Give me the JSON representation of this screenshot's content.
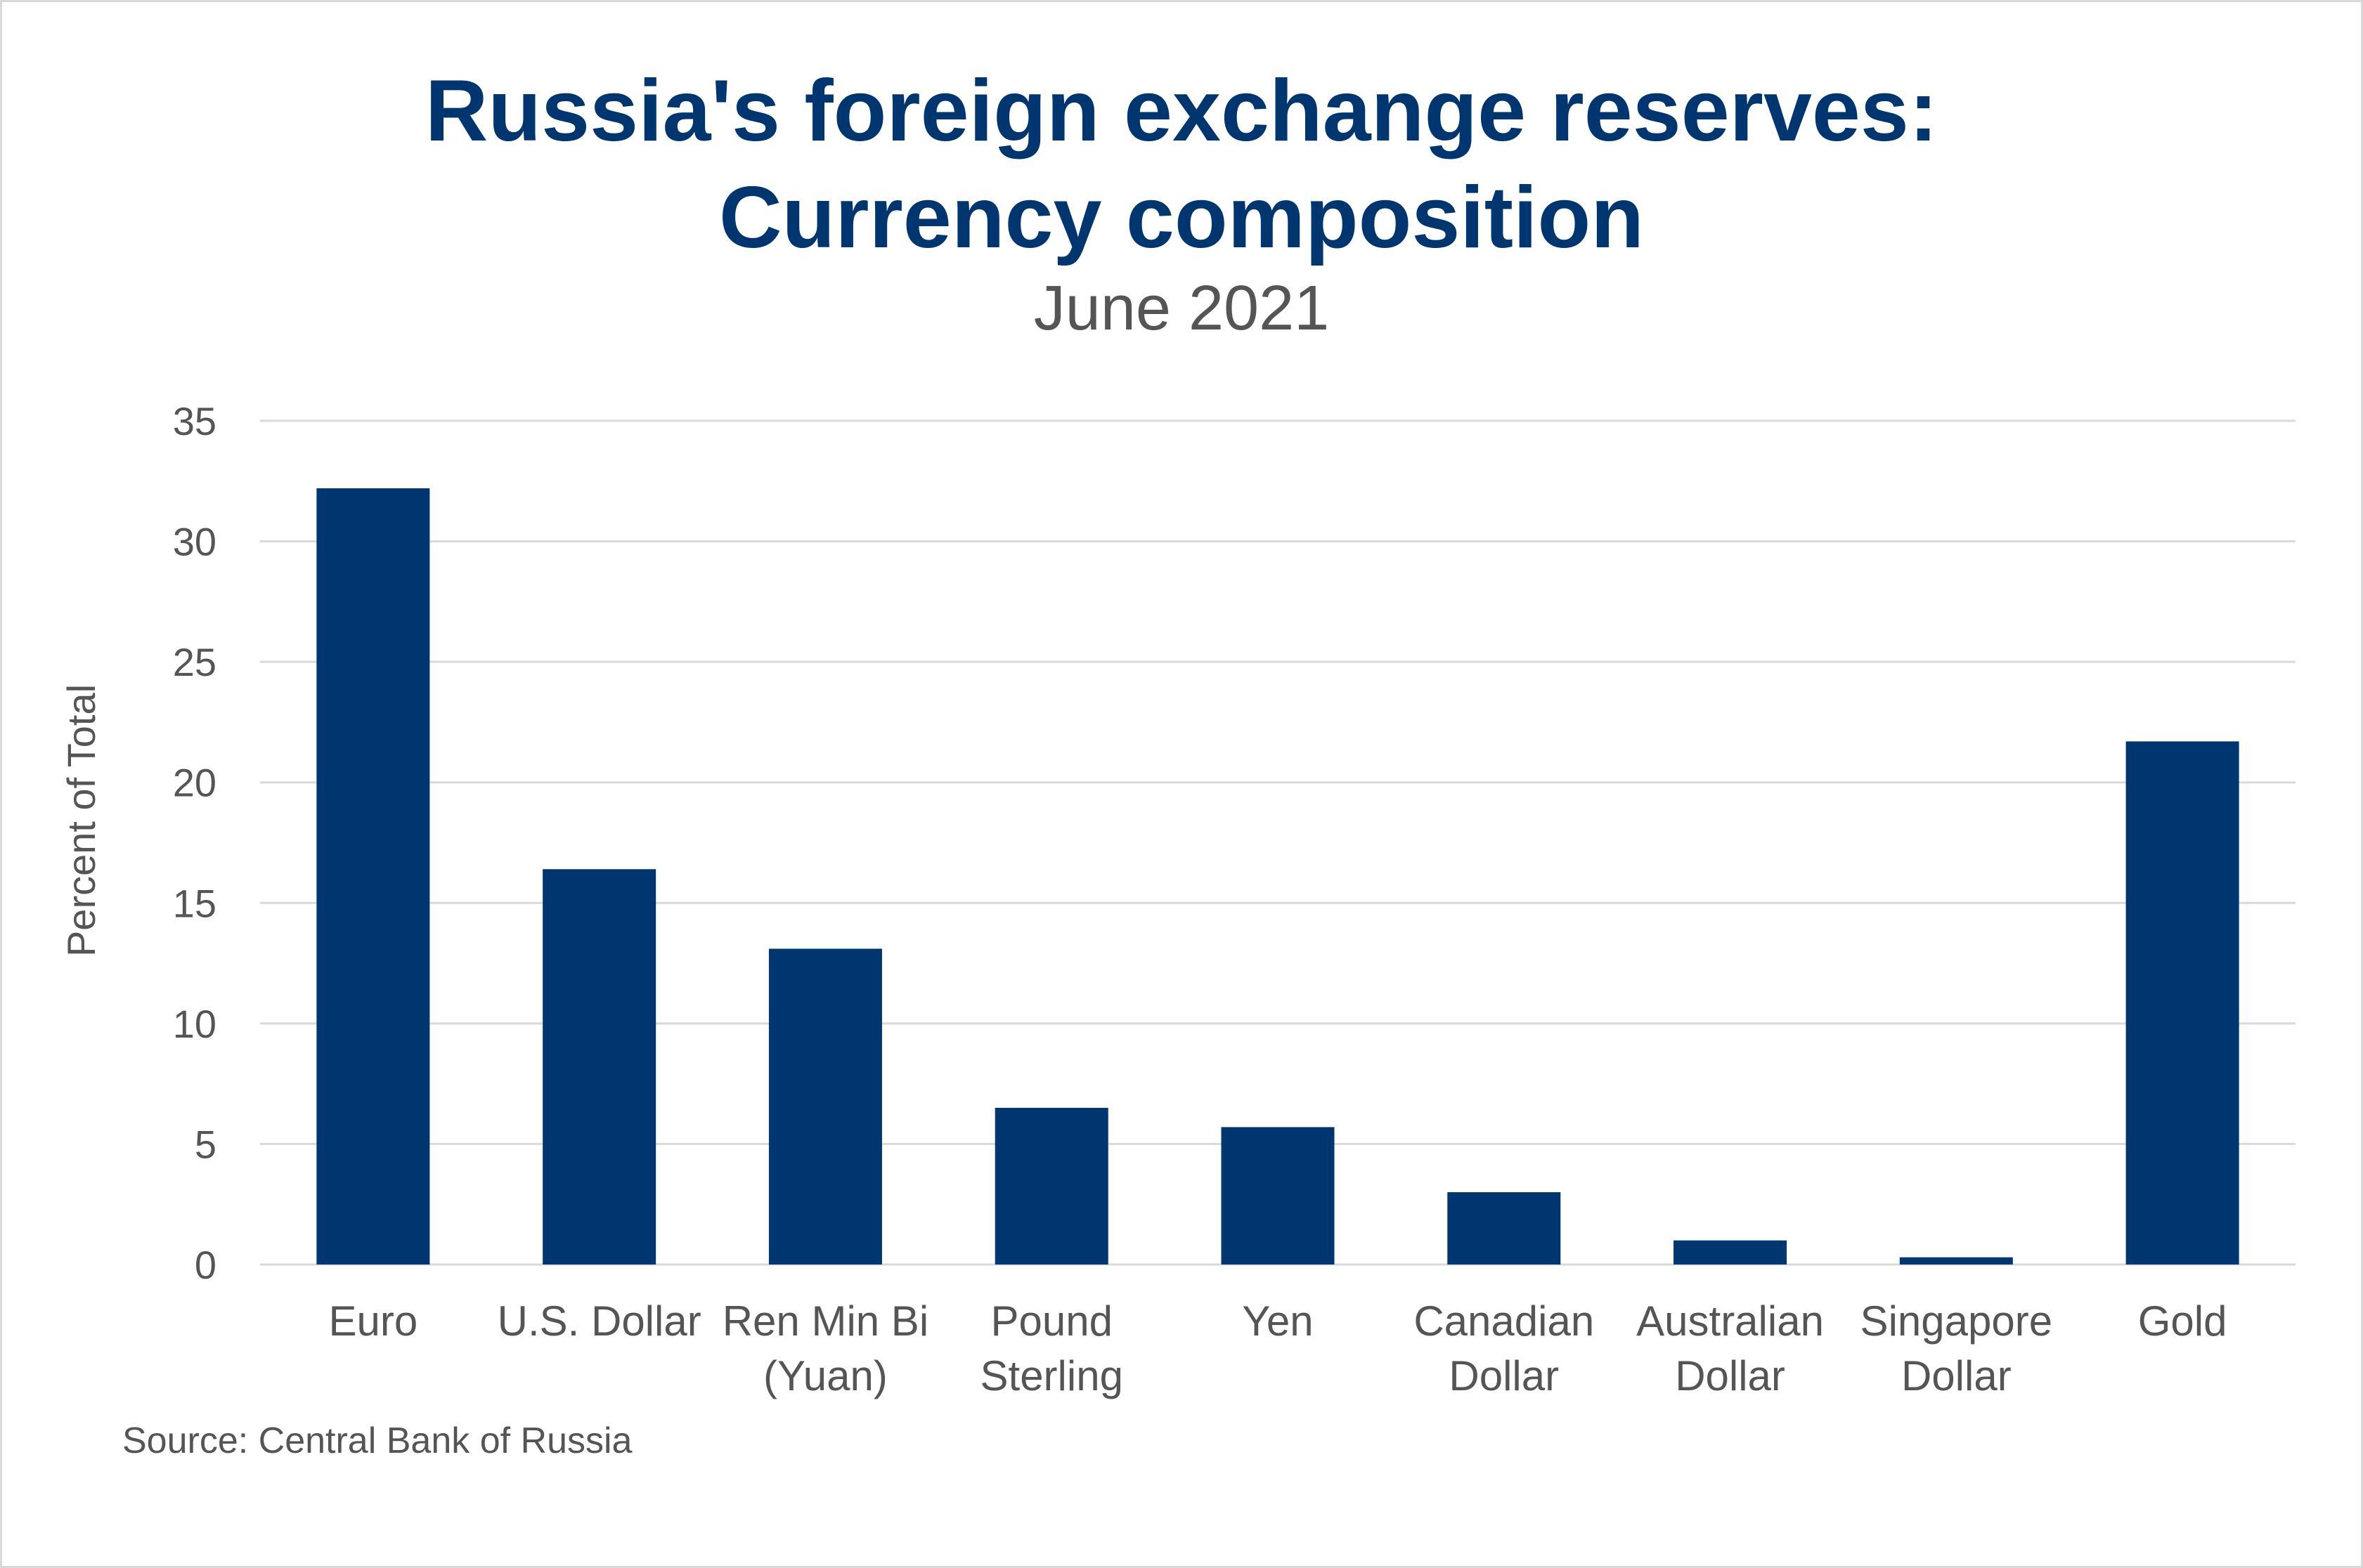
{
  "chart_data": {
    "type": "bar",
    "title": "Russia's foreign exchange reserves:",
    "title_line2": "Currency composition",
    "subtitle": "June 2021",
    "xlabel": "",
    "ylabel": "Percent of Total",
    "ylim": [
      0,
      35
    ],
    "yticks": [
      0,
      5,
      10,
      15,
      20,
      25,
      30,
      35
    ],
    "grid": true,
    "categories": [
      [
        "Euro"
      ],
      [
        "U.S. Dollar"
      ],
      [
        "Ren Min Bi",
        "(Yuan)"
      ],
      [
        "Pound",
        "Sterling"
      ],
      [
        "Yen"
      ],
      [
        "Canadian",
        "Dollar"
      ],
      [
        "Australian",
        "Dollar"
      ],
      [
        "Singapore",
        "Dollar"
      ],
      [
        "Gold"
      ]
    ],
    "values": [
      32.2,
      16.4,
      13.1,
      6.5,
      5.7,
      3.0,
      1.0,
      0.3,
      21.7
    ],
    "bar_color": "#003670",
    "grid_color": "#d9d9d9",
    "source": "Source: Central Bank of Russia"
  }
}
